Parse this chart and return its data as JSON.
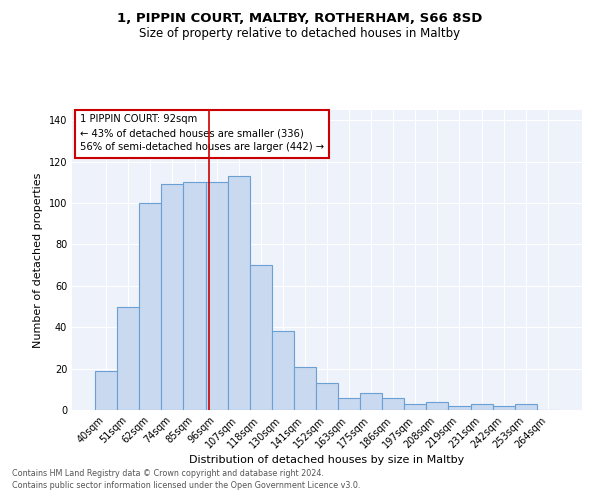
{
  "title1": "1, PIPPIN COURT, MALTBY, ROTHERHAM, S66 8SD",
  "title2": "Size of property relative to detached houses in Maltby",
  "xlabel": "Distribution of detached houses by size in Maltby",
  "ylabel": "Number of detached properties",
  "categories": [
    "40sqm",
    "51sqm",
    "62sqm",
    "74sqm",
    "85sqm",
    "96sqm",
    "107sqm",
    "118sqm",
    "130sqm",
    "141sqm",
    "152sqm",
    "163sqm",
    "175sqm",
    "186sqm",
    "197sqm",
    "208sqm",
    "219sqm",
    "231sqm",
    "242sqm",
    "253sqm",
    "264sqm"
  ],
  "values": [
    19,
    50,
    100,
    109,
    110,
    110,
    113,
    70,
    38,
    21,
    13,
    6,
    8,
    6,
    3,
    4,
    2,
    3,
    2,
    3,
    0
  ],
  "bar_color": "#c9d9f0",
  "bar_edge_color": "#6aa0d4",
  "bar_linewidth": 0.8,
  "annotation_line1": "1 PIPPIN COURT: 92sqm",
  "annotation_line2": "← 43% of detached houses are smaller (336)",
  "annotation_line3": "56% of semi-detached houses are larger (442) →",
  "ylim": [
    0,
    145
  ],
  "yticks": [
    0,
    20,
    40,
    60,
    80,
    100,
    120,
    140
  ],
  "red_line_color": "#cc0000",
  "box_edge_color": "#cc0000",
  "footer1": "Contains HM Land Registry data © Crown copyright and database right 2024.",
  "footer2": "Contains public sector information licensed under the Open Government Licence v3.0.",
  "bg_color": "#eef2fb",
  "fig_bg_color": "#ffffff"
}
